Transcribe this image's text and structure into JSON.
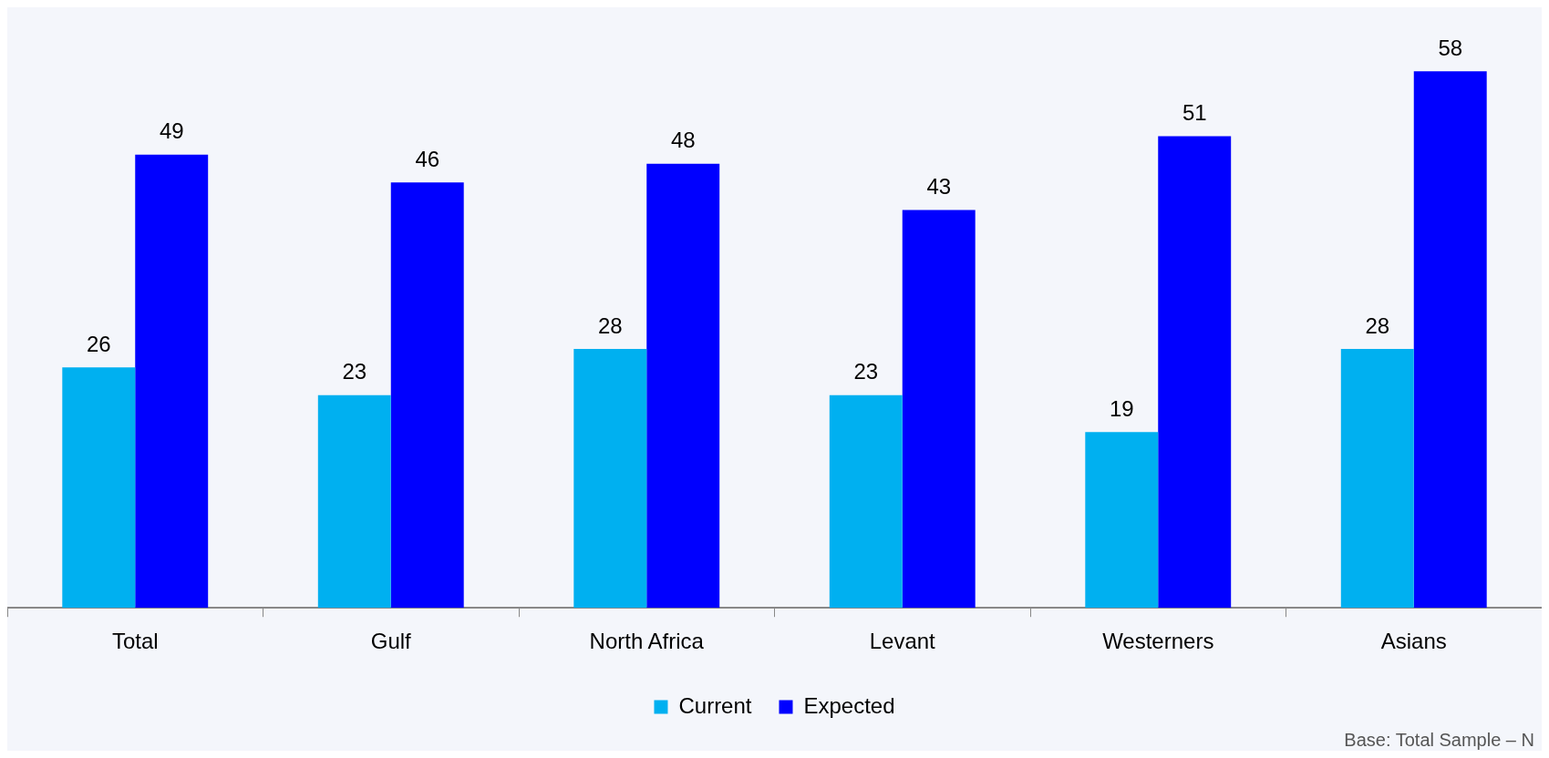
{
  "chart_data": {
    "type": "bar",
    "categories": [
      "Total",
      "Gulf",
      "North Africa",
      "Levant",
      "Westerners",
      "Asians"
    ],
    "series": [
      {
        "name": "Current",
        "color": "#00b0f0",
        "values": [
          26,
          23,
          28,
          23,
          19,
          28
        ]
      },
      {
        "name": "Expected",
        "color": "#0000ff",
        "values": [
          49,
          46,
          48,
          43,
          51,
          58
        ]
      }
    ],
    "data_labels": true,
    "legend": "bottom",
    "grid": false,
    "annotations": [
      "Base: Total Sample – N"
    ]
  }
}
